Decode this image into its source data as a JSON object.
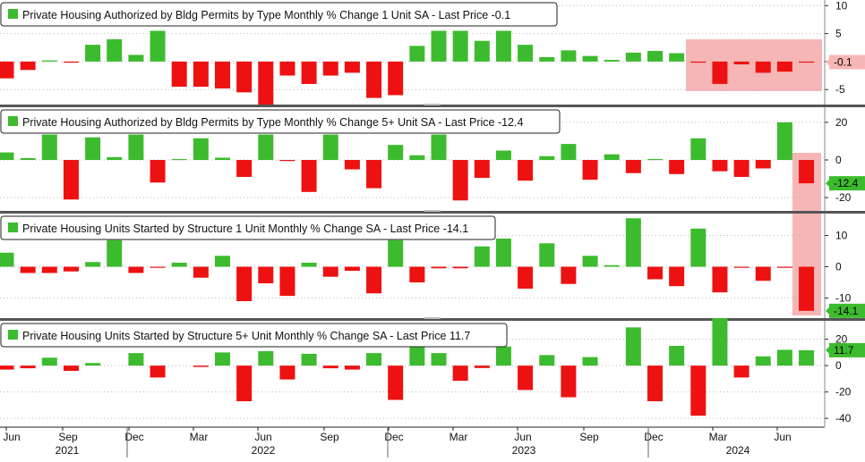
{
  "colors": {
    "up": "#3dbb2e",
    "down": "#ee1111",
    "highlight": "#f7b6b6",
    "grid": "#b9b9b9",
    "frame": "#222222"
  },
  "x_axis": {
    "months": [
      "Jun",
      "Sep",
      "Dec",
      "Mar",
      "Jun",
      "Sep",
      "Dec",
      "Mar",
      "Jun",
      "Sep",
      "Dec",
      "Mar",
      "Jun"
    ],
    "years": [
      "2021",
      "2022",
      "2023",
      "2024"
    ]
  },
  "chart_data": [
    {
      "type": "bar",
      "title": "Private Housing Authorized by Bldg Permits by Type Monthly % Change 1 Unit SA - Last Price -0.1",
      "last_label": "-0.1",
      "ticks": [
        "10",
        "5",
        "0",
        "-5"
      ],
      "ylim": [
        -8,
        11
      ],
      "tick_values": [
        10,
        5,
        0,
        -5
      ],
      "x": [
        "2021-05",
        "2021-06",
        "2021-07",
        "2021-08",
        "2021-09",
        "2021-10",
        "2021-11",
        "2021-12",
        "2022-01",
        "2022-02",
        "2022-03",
        "2022-04",
        "2022-05",
        "2022-06",
        "2022-07",
        "2022-08",
        "2022-09",
        "2022-10",
        "2022-11",
        "2022-12",
        "2023-01",
        "2023-02",
        "2023-03",
        "2023-04",
        "2023-05",
        "2023-06",
        "2023-07",
        "2023-08",
        "2023-09",
        "2023-10",
        "2023-11",
        "2023-12",
        "2024-01",
        "2024-02",
        "2024-03",
        "2024-04",
        "2024-05",
        "2024-06",
        "2024-07"
      ],
      "values": [
        -3,
        -1.5,
        0.2,
        -0.2,
        3,
        4,
        1.2,
        5.5,
        -4.5,
        -4.5,
        -4.8,
        -5.5,
        -8,
        -2.5,
        -4,
        -2.5,
        -2,
        -6.5,
        -6,
        2.8,
        5.5,
        5.5,
        3.7,
        5.5,
        3,
        0.8,
        2,
        1,
        0.3,
        1.6,
        1.9,
        1.5,
        -0.2,
        -4,
        -0.5,
        -2,
        -1.8,
        -0.1,
        0
      ]
    },
    {
      "type": "bar",
      "title": "Private Housing Authorized by Bldg Permits by Type Monthly % Change 5+ Unit SA - Last Price -12.4",
      "last_label": "-12.4",
      "ticks": [
        "20",
        "0",
        "-20"
      ],
      "ylim": [
        -28,
        28
      ],
      "tick_values": [
        20,
        0,
        -20
      ],
      "x": [
        "2021-05",
        "2021-06",
        "2021-07",
        "2021-08",
        "2021-09",
        "2021-10",
        "2021-11",
        "2021-12",
        "2022-01",
        "2022-02",
        "2022-03",
        "2022-04",
        "2022-05",
        "2022-06",
        "2022-07",
        "2022-08",
        "2022-09",
        "2022-10",
        "2022-11",
        "2022-12",
        "2023-01",
        "2023-02",
        "2023-03",
        "2023-04",
        "2023-05",
        "2023-06",
        "2023-07",
        "2023-08",
        "2023-09",
        "2023-10",
        "2023-11",
        "2023-12",
        "2024-01",
        "2024-02",
        "2024-03",
        "2024-04",
        "2024-05",
        "2024-06",
        "2024-07"
      ],
      "values": [
        4,
        1,
        13.5,
        -21,
        12,
        1.5,
        13.5,
        -12,
        0.5,
        11.5,
        1.2,
        -9,
        13.5,
        -0.5,
        -17,
        13.5,
        -5,
        -15,
        8,
        2.5,
        13.5,
        -21.5,
        -9.5,
        5,
        -11,
        2,
        8.5,
        -10.5,
        3,
        -7,
        0.5,
        -7.5,
        11.5,
        -6,
        -9,
        -4.5,
        20,
        -12.4,
        0
      ]
    },
    {
      "type": "bar",
      "title": "Private Housing Units Started by Structure 1 Unit Monthly % Change SA - Last Price -14.1",
      "last_label": "-14.1",
      "ticks": [
        "10",
        "0",
        "-10"
      ],
      "ylim": [
        -17,
        17
      ],
      "tick_values": [
        10,
        0,
        -10
      ],
      "x": [
        "2021-05",
        "2021-06",
        "2021-07",
        "2021-08",
        "2021-09",
        "2021-10",
        "2021-11",
        "2021-12",
        "2022-01",
        "2022-02",
        "2022-03",
        "2022-04",
        "2022-05",
        "2022-06",
        "2022-07",
        "2022-08",
        "2022-09",
        "2022-10",
        "2022-11",
        "2022-12",
        "2023-01",
        "2023-02",
        "2023-03",
        "2023-04",
        "2023-05",
        "2023-06",
        "2023-07",
        "2023-08",
        "2023-09",
        "2023-10",
        "2023-11",
        "2023-12",
        "2024-01",
        "2024-02",
        "2024-03",
        "2024-04",
        "2024-05",
        "2024-06",
        "2024-07"
      ],
      "values": [
        4.5,
        -2,
        -2,
        -1.5,
        1.5,
        8.5,
        -2,
        -0.3,
        1.3,
        -3.5,
        3.5,
        -11,
        -5.3,
        -9.3,
        1.3,
        -3.2,
        -1.3,
        -8.5,
        8.5,
        -5,
        -0.5,
        -0.5,
        6.5,
        9,
        -7,
        7.5,
        -5.5,
        3.5,
        0.5,
        15.5,
        -4,
        -6.2,
        12.2,
        -8.2,
        -0.2,
        -4.5,
        -0.2,
        -14.1,
        0
      ]
    },
    {
      "type": "bar",
      "title": "Private Housing Units Started by Structure 5+ Unit Monthly % Change SA - Last Price 11.7",
      "last_label": "11.7",
      "ticks": [
        "20",
        "0",
        "-20",
        "-40"
      ],
      "ylim": [
        -46,
        34
      ],
      "tick_values": [
        20,
        0,
        -20,
        -40
      ],
      "x": [
        "2021-05",
        "2021-06",
        "2021-07",
        "2021-08",
        "2021-09",
        "2021-10",
        "2021-11",
        "2021-12",
        "2022-01",
        "2022-02",
        "2022-03",
        "2022-04",
        "2022-05",
        "2022-06",
        "2022-07",
        "2022-08",
        "2022-09",
        "2022-10",
        "2022-11",
        "2022-12",
        "2023-01",
        "2023-02",
        "2023-03",
        "2023-04",
        "2023-05",
        "2023-06",
        "2023-07",
        "2023-08",
        "2023-09",
        "2023-10",
        "2023-11",
        "2023-12",
        "2024-01",
        "2024-02",
        "2024-03",
        "2024-04",
        "2024-05",
        "2024-06",
        "2024-07"
      ],
      "values": [
        -3,
        -2,
        6,
        -4,
        2,
        0,
        9.5,
        -9,
        0,
        -1,
        10,
        -27,
        11,
        -10.5,
        9,
        -2,
        -3,
        9.5,
        -26,
        15,
        9.5,
        -11.5,
        -1.8,
        14.5,
        -18.5,
        8,
        -24,
        6.5,
        0,
        29,
        -27,
        15,
        -38,
        36,
        -9,
        7,
        12,
        11.7,
        0
      ]
    }
  ]
}
